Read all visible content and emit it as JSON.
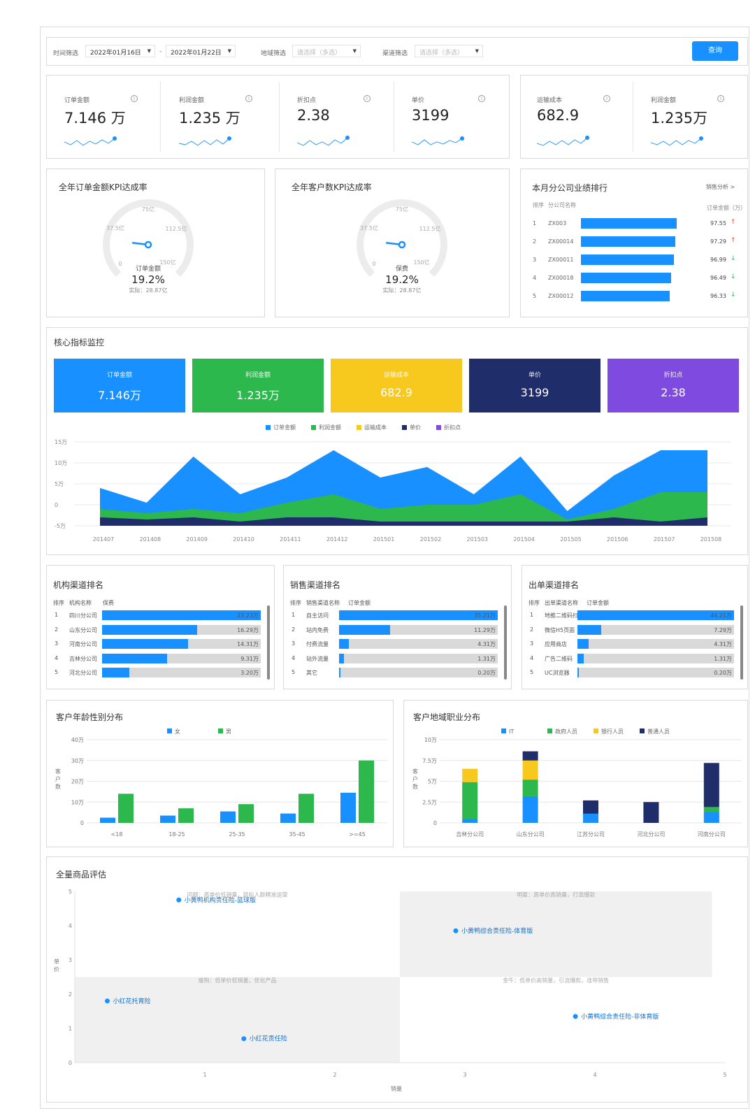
{
  "filters": {
    "time_label": "时间筛选",
    "date_start": "2022年01月16日",
    "date_sep": "-",
    "date_end": "2022年01月22日",
    "region_label": "地域筛选",
    "region_placeholder": "请选择（多选）",
    "channel_label": "渠道筛选",
    "channel_placeholder": "请选择（多选）",
    "query_button": "查询"
  },
  "kpis": [
    {
      "label": "订单金额",
      "value": "7.146 万"
    },
    {
      "label": "利润金额",
      "value": "1.235 万"
    },
    {
      "label": "折扣点",
      "value": "2.38"
    },
    {
      "label": "单价",
      "value": "3199"
    },
    {
      "label": "运输成本",
      "value": "682.9"
    },
    {
      "label": "利润金额",
      "value": "1.235万"
    }
  ],
  "info_glyph": "i",
  "gauges": [
    {
      "title": "全年订单金额KPI达成率",
      "center_label": "订单金额",
      "percent": "19.2%",
      "actual": "实际：28.87亿",
      "ticks": [
        "0",
        "37.5亿",
        "75亿",
        "112.5亿",
        "150亿"
      ],
      "value_fraction": 0.192
    },
    {
      "title": "全年客户数KPI达成率",
      "center_label": "保费",
      "percent": "19.2%",
      "actual": "实际：28.87亿",
      "ticks": [
        "0",
        "37.5亿",
        "75亿",
        "112.5亿",
        "150亿"
      ],
      "value_fraction": 0.192
    }
  ],
  "ranking": {
    "title": "本月分公司业绩排行",
    "link": "销售分析 >",
    "col_rank": "排序",
    "col_name": "分公司名称",
    "col_value": "订单金额（万）",
    "rows": [
      {
        "rank": "1",
        "name": "ZX003",
        "value": "97.55",
        "trend": "↑",
        "trend_color": "#e64a3b",
        "num": 97.55
      },
      {
        "rank": "2",
        "name": "ZX00014",
        "value": "97.29",
        "trend": "↑",
        "trend_color": "#e64a3b",
        "num": 97.29
      },
      {
        "rank": "3",
        "name": "ZX00011",
        "value": "96.99",
        "trend": "↓",
        "trend_color": "#2db84d",
        "num": 96.99
      },
      {
        "rank": "4",
        "name": "ZX00018",
        "value": "96.49",
        "trend": "↓",
        "trend_color": "#2db84d",
        "num": 96.49
      },
      {
        "rank": "5",
        "name": "ZX00012",
        "value": "96.33",
        "trend": "↓",
        "trend_color": "#2db84d",
        "num": 96.33
      }
    ]
  },
  "core": {
    "title": "核心指标监控",
    "tiles": [
      {
        "label": "订单金额",
        "value": "7.146万",
        "color": "#1890ff"
      },
      {
        "label": "利润金额",
        "value": "1.235万",
        "color": "#2db84d"
      },
      {
        "label": "运输成本",
        "value": "682.9",
        "color": "#f7c81e"
      },
      {
        "label": "单价",
        "value": "3199",
        "color": "#1f2d6b"
      },
      {
        "label": "折扣点",
        "value": "2.38",
        "color": "#7e4ae0"
      }
    ]
  },
  "chart_data": [
    {
      "type": "area",
      "legend": [
        "订单金额",
        "利润金额",
        "运输成本",
        "单价",
        "折扣点"
      ],
      "colors": [
        "#1890ff",
        "#2db84d",
        "#f7c81e",
        "#1f2d6b",
        "#7e4ae0"
      ],
      "x": [
        "201407",
        "201408",
        "201409",
        "201410",
        "201411",
        "201412",
        "201501",
        "201502",
        "201503",
        "201504",
        "201505",
        "201506",
        "201507",
        "201508"
      ],
      "yticks": [
        "15万",
        "10万",
        "5万",
        "0",
        "-5万"
      ],
      "ylim": [
        -5,
        15
      ],
      "series": [
        {
          "name": "订单金额",
          "values": [
            4,
            0.5,
            11.5,
            2.5,
            6.5,
            13,
            6.5,
            9,
            2.5,
            11.5,
            -1.5,
            7,
            13,
            13
          ]
        },
        {
          "name": "利润金额",
          "values": [
            -1,
            -2,
            -1,
            -2,
            0.5,
            2.5,
            -1,
            0,
            0,
            2.5,
            -3.5,
            -1,
            3,
            3
          ]
        },
        {
          "name": "单价",
          "values": [
            -3,
            -3.5,
            -3,
            -4,
            -3,
            -3,
            -4,
            -4,
            -4,
            -4,
            -4,
            -3,
            -4,
            -3
          ]
        }
      ]
    },
    {
      "type": "bar",
      "title": "客户年龄性别分布",
      "categories": [
        "<18",
        "18-25",
        "25-35",
        "35-45",
        ">=45"
      ],
      "yticks": [
        "40万",
        "30万",
        "20万",
        "10万",
        "0"
      ],
      "ylim": [
        0,
        40
      ],
      "ylabel": "客户数",
      "series": [
        {
          "name": "女",
          "values": [
            2.5,
            3.5,
            5.5,
            4.5,
            14.5
          ],
          "color": "#1890ff"
        },
        {
          "name": "男",
          "values": [
            14,
            7,
            9,
            14,
            30
          ],
          "color": "#2db84d"
        }
      ]
    },
    {
      "type": "bar",
      "title": "客户地域职业分布",
      "categories": [
        "吉林分公司",
        "山东分公司",
        "江苏分公司",
        "河北分公司",
        "河南分公司"
      ],
      "yticks": [
        "10万",
        "7.5万",
        "5万",
        "2.5万",
        "0"
      ],
      "ylim": [
        0,
        10
      ],
      "ylabel": "客户数",
      "stacked": true,
      "series": [
        {
          "name": "IT",
          "values": [
            0.5,
            3.2,
            1.1,
            0,
            1.3
          ],
          "color": "#1890ff"
        },
        {
          "name": "政府人员",
          "values": [
            4.4,
            2.0,
            0,
            0,
            0.6
          ],
          "color": "#2db84d"
        },
        {
          "name": "银行人员",
          "values": [
            1.6,
            2.3,
            0,
            0,
            0
          ],
          "color": "#f7c81e"
        },
        {
          "name": "普通人员",
          "values": [
            0,
            1.1,
            1.6,
            2.5,
            5.3
          ],
          "color": "#1f2d6b"
        }
      ]
    },
    {
      "type": "scatter",
      "title": "全量商品评估",
      "xlabel": "销量",
      "ylabel": "单价",
      "xlim": [
        0,
        5
      ],
      "ylim": [
        0,
        5
      ],
      "xticks": [
        "1",
        "2",
        "3",
        "4",
        "5"
      ],
      "yticks": [
        "5",
        "4",
        "3",
        "2",
        "1",
        "0"
      ],
      "quadrants": [
        "问题：高单价低销量，目标人群精准运营",
        "明星：高单价高销量，打造爆款",
        "瘦狗：低单价低销量，优化产品",
        "金牛：低单价高销量，引流爆款，连带销售"
      ],
      "points": [
        {
          "label": "小黄鸭机构责任险-篮球版",
          "x": 0.8,
          "y": 4.75
        },
        {
          "label": "小黄鸭综合责任险-体育版",
          "x": 2.93,
          "y": 3.85
        },
        {
          "label": "小红花托育险",
          "x": 0.25,
          "y": 1.8
        },
        {
          "label": "小黄鸭综合责任险-非体育版",
          "x": 3.85,
          "y": 1.35
        },
        {
          "label": "小红花责任险",
          "x": 1.3,
          "y": 0.7
        }
      ]
    }
  ],
  "channels": [
    {
      "title": "机构渠道排名",
      "h1": "排序",
      "h2": "机构名称",
      "h3": "保费",
      "rows": [
        {
          "rank": "1",
          "name": "四川分公司",
          "value": "23.23万",
          "frac": 1.0
        },
        {
          "rank": "2",
          "name": "山东分公司",
          "value": "16.29万",
          "frac": 0.6
        },
        {
          "rank": "3",
          "name": "河南分公司",
          "value": "14.31万",
          "frac": 0.54
        },
        {
          "rank": "4",
          "name": "吉林分公司",
          "value": "9.31万",
          "frac": 0.41
        },
        {
          "rank": "5",
          "name": "河北分公司",
          "value": "3.20万",
          "frac": 0.17
        }
      ]
    },
    {
      "title": "销售渠道排名",
      "h1": "排序",
      "h2": "销售渠道名称",
      "h3": "订单金额",
      "rows": [
        {
          "rank": "1",
          "name": "自主访问",
          "value": "35.21万",
          "frac": 1.0
        },
        {
          "rank": "2",
          "name": "站内免费",
          "value": "11.29万",
          "frac": 0.32
        },
        {
          "rank": "3",
          "name": "付费流量",
          "value": "4.31万",
          "frac": 0.06
        },
        {
          "rank": "4",
          "name": "站外流量",
          "value": "1.31万",
          "frac": 0.03
        },
        {
          "rank": "5",
          "name": "其它",
          "value": "0.20万",
          "frac": 0.01
        }
      ]
    },
    {
      "title": "出单渠道排名",
      "h1": "排序",
      "h2": "出单渠道名称",
      "h3": "订单金额",
      "rows": [
        {
          "rank": "1",
          "name": "地推二维码扫描",
          "value": "44.21万",
          "frac": 1.0
        },
        {
          "rank": "2",
          "name": "微信H5页面",
          "value": "7.29万",
          "frac": 0.15
        },
        {
          "rank": "3",
          "name": "应用商店",
          "value": "4.31万",
          "frac": 0.07
        },
        {
          "rank": "4",
          "name": "广告二维码",
          "value": "1.31万",
          "frac": 0.04
        },
        {
          "rank": "5",
          "name": "UC浏览器",
          "value": "0.20万",
          "frac": 0.01
        }
      ]
    }
  ]
}
